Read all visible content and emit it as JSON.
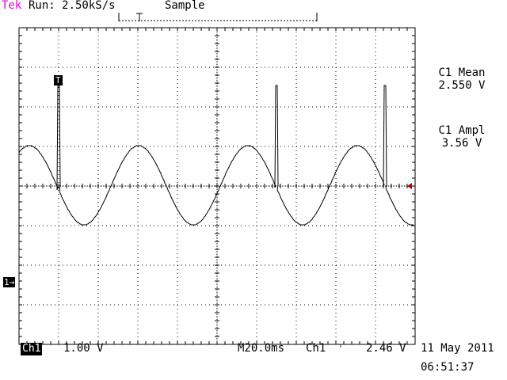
{
  "header": {
    "brand": "Tek",
    "run_status": "Run: 2.50kS/s",
    "acquisition_mode": "Sample"
  },
  "markers": {
    "trigger": "T",
    "channel_ground": "1→"
  },
  "measurements": [
    {
      "label": "C1 Mean",
      "value": "2.550 V"
    },
    {
      "label": "C1 Ampl",
      "value": "3.56 V"
    }
  ],
  "footer": {
    "channel": "Ch1",
    "vertical_scale": "1.00 V",
    "timebase": "M20.0ms",
    "trigger_source": "Ch1",
    "trigger_slope_icon": "falling-edge-icon",
    "trigger_slope_glyph": "⌝",
    "trigger_level": "2.46 V",
    "date": "11 May 2011",
    "time": "06:51:37"
  },
  "colors": {
    "brand": "#e000e0",
    "trace": "#000000",
    "grid": "#000000",
    "trigger_level_marker": "#c00000"
  }
}
